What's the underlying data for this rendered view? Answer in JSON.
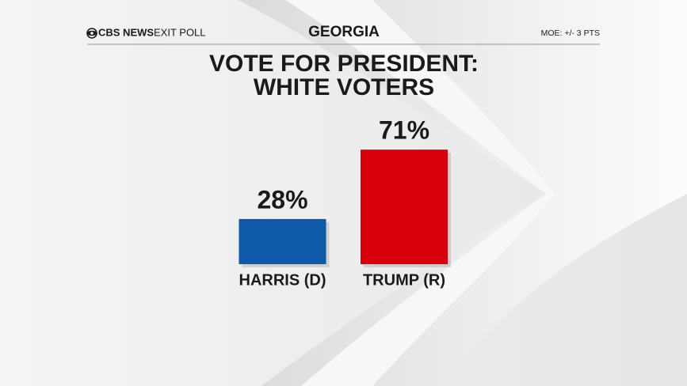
{
  "chart_data": {
    "type": "bar",
    "brand": "CBS NEWS",
    "brand_label": "EXIT POLL",
    "state": "GEORGIA",
    "moe": "MOE: +/- 3 PTS",
    "title": [
      "VOTE FOR PRESIDENT:",
      "WHITE VOTERS"
    ],
    "categories": [
      "HARRIS (D)",
      "TRUMP (R)"
    ],
    "values": [
      28,
      71
    ],
    "value_labels": [
      "28%",
      "71%"
    ],
    "colors": [
      "#0f5aa8",
      "#d8000b"
    ]
  }
}
